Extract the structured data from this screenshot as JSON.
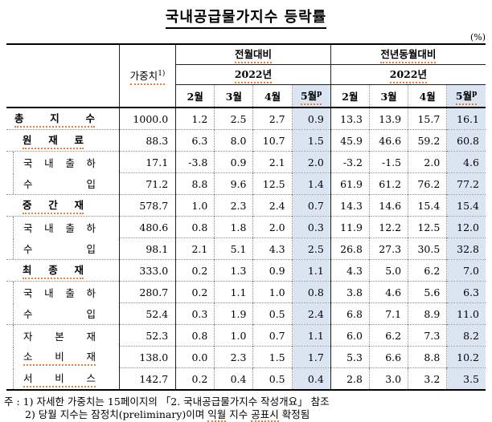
{
  "page": {
    "title": "국내공급물가지수 등락률",
    "unit_label": "(%)"
  },
  "colors": {
    "highlight": "#dbe5f1",
    "squiggle": "#ed7d31"
  },
  "table": {
    "header": {
      "weight": {
        "label": "가중치",
        "sup": "1)"
      },
      "groups": [
        {
          "label": "전월대비",
          "year": "2022년",
          "months": [
            {
              "label": "2월"
            },
            {
              "label": "3월"
            },
            {
              "label": "4월"
            },
            {
              "label": "5월",
              "sup": "p"
            }
          ]
        },
        {
          "label": "전년동월대비",
          "year": "2022년",
          "months": [
            {
              "label": "2월"
            },
            {
              "label": "3월"
            },
            {
              "label": "4월"
            },
            {
              "label": "5월",
              "sup": "p"
            }
          ]
        }
      ]
    },
    "rows": [
      {
        "label": "총지수",
        "indent": 0,
        "bold": true,
        "squiggle": true,
        "box": null,
        "weight": "1000.0",
        "mom": [
          "1.2",
          "2.5",
          "2.7",
          "0.9"
        ],
        "yoy": [
          "13.3",
          "13.9",
          "15.7",
          "16.1"
        ]
      },
      {
        "label": "원재료",
        "indent": 1,
        "bold": true,
        "squiggle": true,
        "box": null,
        "weight": "88.3",
        "mom": [
          "6.3",
          "8.0",
          "10.7",
          "1.5"
        ],
        "yoy": [
          "45.9",
          "46.6",
          "59.2",
          "60.8"
        ]
      },
      {
        "label": "국내출하",
        "indent": 2,
        "bold": false,
        "squiggle": false,
        "box": "start",
        "weight": "17.1",
        "mom": [
          "-3.8",
          "0.9",
          "2.1",
          "2.0"
        ],
        "yoy": [
          "-3.2",
          "-1.5",
          "2.0",
          "4.6"
        ]
      },
      {
        "label": "수입",
        "indent": 2,
        "bold": false,
        "squiggle": false,
        "box": "end",
        "weight": "71.2",
        "mom": [
          "8.8",
          "9.6",
          "12.5",
          "1.4"
        ],
        "yoy": [
          "61.9",
          "61.2",
          "76.2",
          "77.2"
        ]
      },
      {
        "label": "중간재",
        "indent": 1,
        "bold": true,
        "squiggle": true,
        "box": null,
        "weight": "578.7",
        "mom": [
          "1.0",
          "2.3",
          "2.4",
          "0.7"
        ],
        "yoy": [
          "14.3",
          "14.6",
          "15.4",
          "15.4"
        ]
      },
      {
        "label": "국내출하",
        "indent": 2,
        "bold": false,
        "squiggle": false,
        "box": "start",
        "weight": "480.6",
        "mom": [
          "0.8",
          "1.8",
          "2.0",
          "0.3"
        ],
        "yoy": [
          "11.9",
          "12.2",
          "12.5",
          "12.0"
        ]
      },
      {
        "label": "수입",
        "indent": 2,
        "bold": false,
        "squiggle": false,
        "box": "end",
        "weight": "98.1",
        "mom": [
          "2.1",
          "5.1",
          "4.3",
          "2.5"
        ],
        "yoy": [
          "26.8",
          "27.3",
          "30.5",
          "32.8"
        ]
      },
      {
        "label": "최종재",
        "indent": 1,
        "bold": true,
        "squiggle": true,
        "box": null,
        "weight": "333.0",
        "mom": [
          "0.2",
          "1.3",
          "0.9",
          "1.1"
        ],
        "yoy": [
          "4.3",
          "5.0",
          "6.2",
          "7.0"
        ]
      },
      {
        "label": "국내출하",
        "indent": 2,
        "bold": false,
        "squiggle": false,
        "box": "start",
        "weight": "280.7",
        "mom": [
          "0.2",
          "1.1",
          "1.0",
          "0.8"
        ],
        "yoy": [
          "3.8",
          "4.6",
          "5.6",
          "6.3"
        ]
      },
      {
        "label": "수입",
        "indent": 2,
        "bold": false,
        "squiggle": false,
        "box": "end",
        "weight": "52.4",
        "mom": [
          "0.3",
          "1.9",
          "0.5",
          "2.4"
        ],
        "yoy": [
          "6.8",
          "7.1",
          "8.9",
          "11.0"
        ]
      },
      {
        "label": "자본재",
        "indent": 2,
        "bold": false,
        "squiggle": false,
        "box": "start",
        "weight": "52.3",
        "mom": [
          "0.8",
          "1.0",
          "0.7",
          "1.1"
        ],
        "yoy": [
          "6.0",
          "6.2",
          "7.3",
          "8.2"
        ]
      },
      {
        "label": "소비재",
        "indent": 2,
        "bold": false,
        "squiggle": true,
        "box": "mid",
        "weight": "138.0",
        "mom": [
          "0.0",
          "2.3",
          "1.5",
          "1.7"
        ],
        "yoy": [
          "5.3",
          "6.6",
          "8.8",
          "10.2"
        ]
      },
      {
        "label": "서비스",
        "indent": 2,
        "bold": false,
        "squiggle": true,
        "box": "end",
        "weight": "142.7",
        "mom": [
          "0.2",
          "0.4",
          "0.5",
          "0.4"
        ],
        "yoy": [
          "2.8",
          "3.0",
          "3.2",
          "3.5"
        ]
      }
    ]
  },
  "footnotes": [
    {
      "indent": false,
      "segments": [
        {
          "text": "주 : 1) 자세한 가중치는 15페이지의 「2. 국내공급물가지수 작성개요」 참조",
          "sq": false
        }
      ]
    },
    {
      "indent": true,
      "segments": [
        {
          "text": "2) 당월 지수는 잠정치(preliminary)이며 ",
          "sq": false
        },
        {
          "text": "익월",
          "sq": true
        },
        {
          "text": " 지수 ",
          "sq": false
        },
        {
          "text": "공표시",
          "sq": true
        },
        {
          "text": " 확정됨",
          "sq": false
        }
      ]
    }
  ]
}
